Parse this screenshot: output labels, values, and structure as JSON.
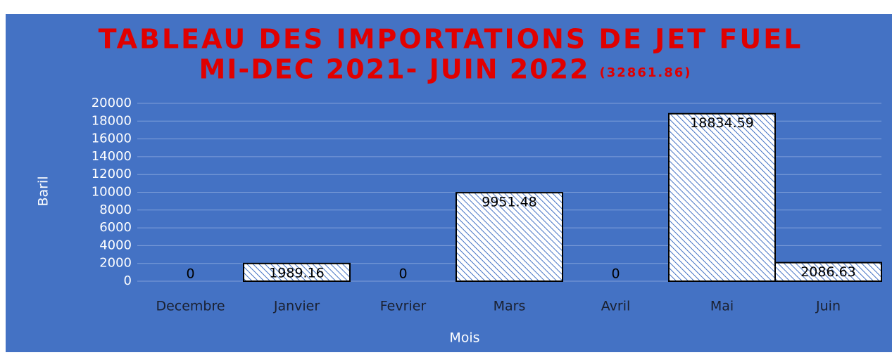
{
  "chart_data": {
    "type": "bar",
    "title": [
      "TABLEAU DES IMPORTATIONS DE JET FUEL",
      "MI-DEC 2021- JUIN 2022"
    ],
    "subtitle": "(32861.86)",
    "x_label": "Mois",
    "y_label": "Baril",
    "categories": [
      "Decembre",
      "Janvier",
      "Fevrier",
      "Mars",
      "Avril",
      "Mai",
      "Juin"
    ],
    "values": [
      0,
      1989.16,
      0,
      9951.48,
      0,
      18834.59,
      2086.63
    ],
    "color": "#ffffff",
    "ylim": [
      0,
      20000
    ],
    "yticks": [
      0,
      2000,
      4000,
      6000,
      8000,
      10000,
      12000,
      14000,
      16000,
      18000,
      20000
    ],
    "grid": true
  }
}
